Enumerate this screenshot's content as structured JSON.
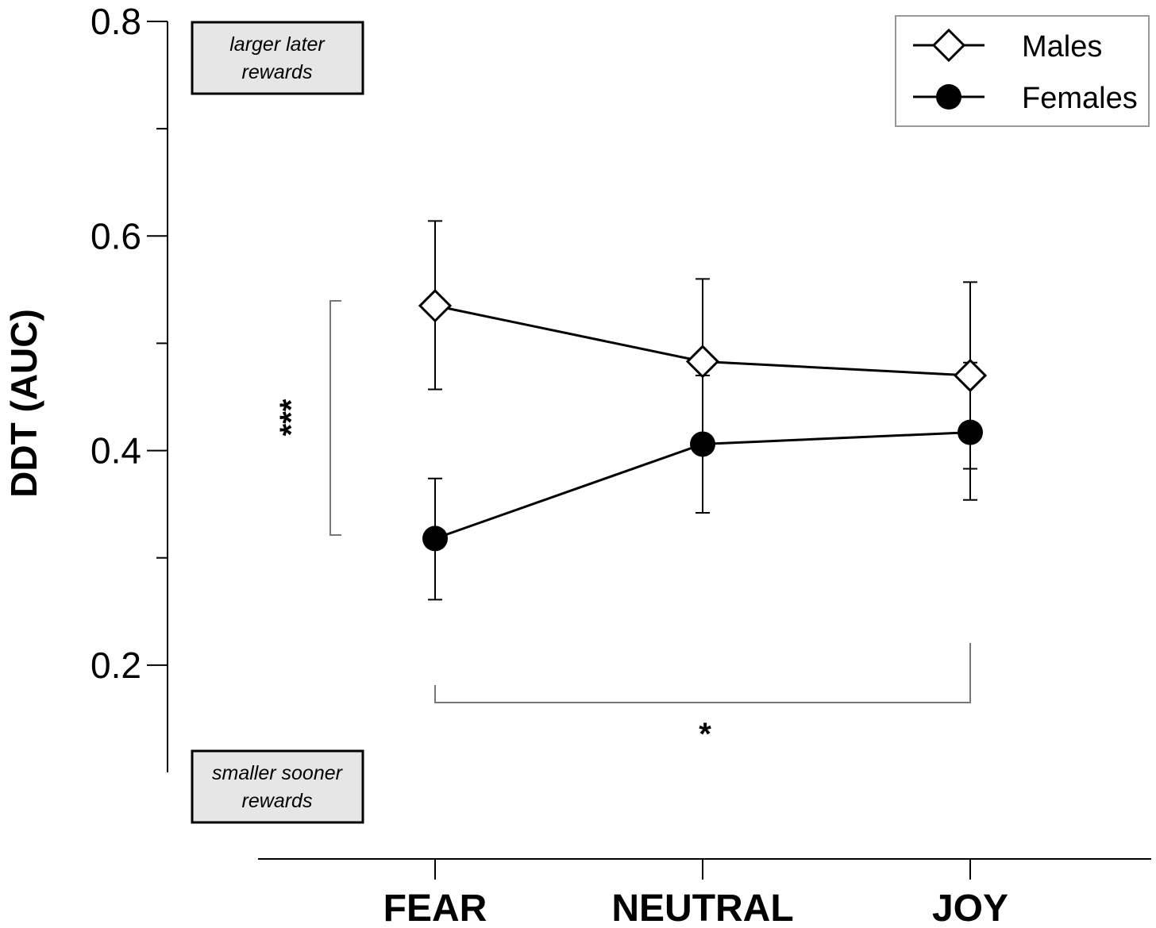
{
  "chart_data": {
    "type": "line",
    "title": "",
    "xlabel": "",
    "ylabel": "DDT (AUC)",
    "categories": [
      "FEAR",
      "NEUTRAL",
      "JOY"
    ],
    "ylim": [
      0.1,
      0.8
    ],
    "y_ticks": [
      0.2,
      0.4,
      0.6,
      0.8
    ],
    "y_tick_labels": [
      "0.2",
      "0.4",
      "0.6",
      "0.8"
    ],
    "series": [
      {
        "name": "Males",
        "marker": "diamond-open",
        "values": [
          0.535,
          0.483,
          0.47
        ],
        "err_low": [
          0.457,
          0.408,
          0.383
        ],
        "err_high": [
          0.614,
          0.56,
          0.557
        ]
      },
      {
        "name": "Females",
        "marker": "circle-filled",
        "values": [
          0.318,
          0.406,
          0.417
        ],
        "err_low": [
          0.261,
          0.342,
          0.354
        ],
        "err_high": [
          0.374,
          0.47,
          0.482
        ]
      }
    ],
    "legend": {
      "position": "top-right",
      "entries": [
        "Males",
        "Females"
      ]
    },
    "grid": false,
    "annotations": {
      "top_box": [
        "larger later",
        "rewards"
      ],
      "bottom_box": [
        "smaller sooner",
        "rewards"
      ],
      "sex_significance": "***",
      "condition_significance": "*"
    }
  }
}
